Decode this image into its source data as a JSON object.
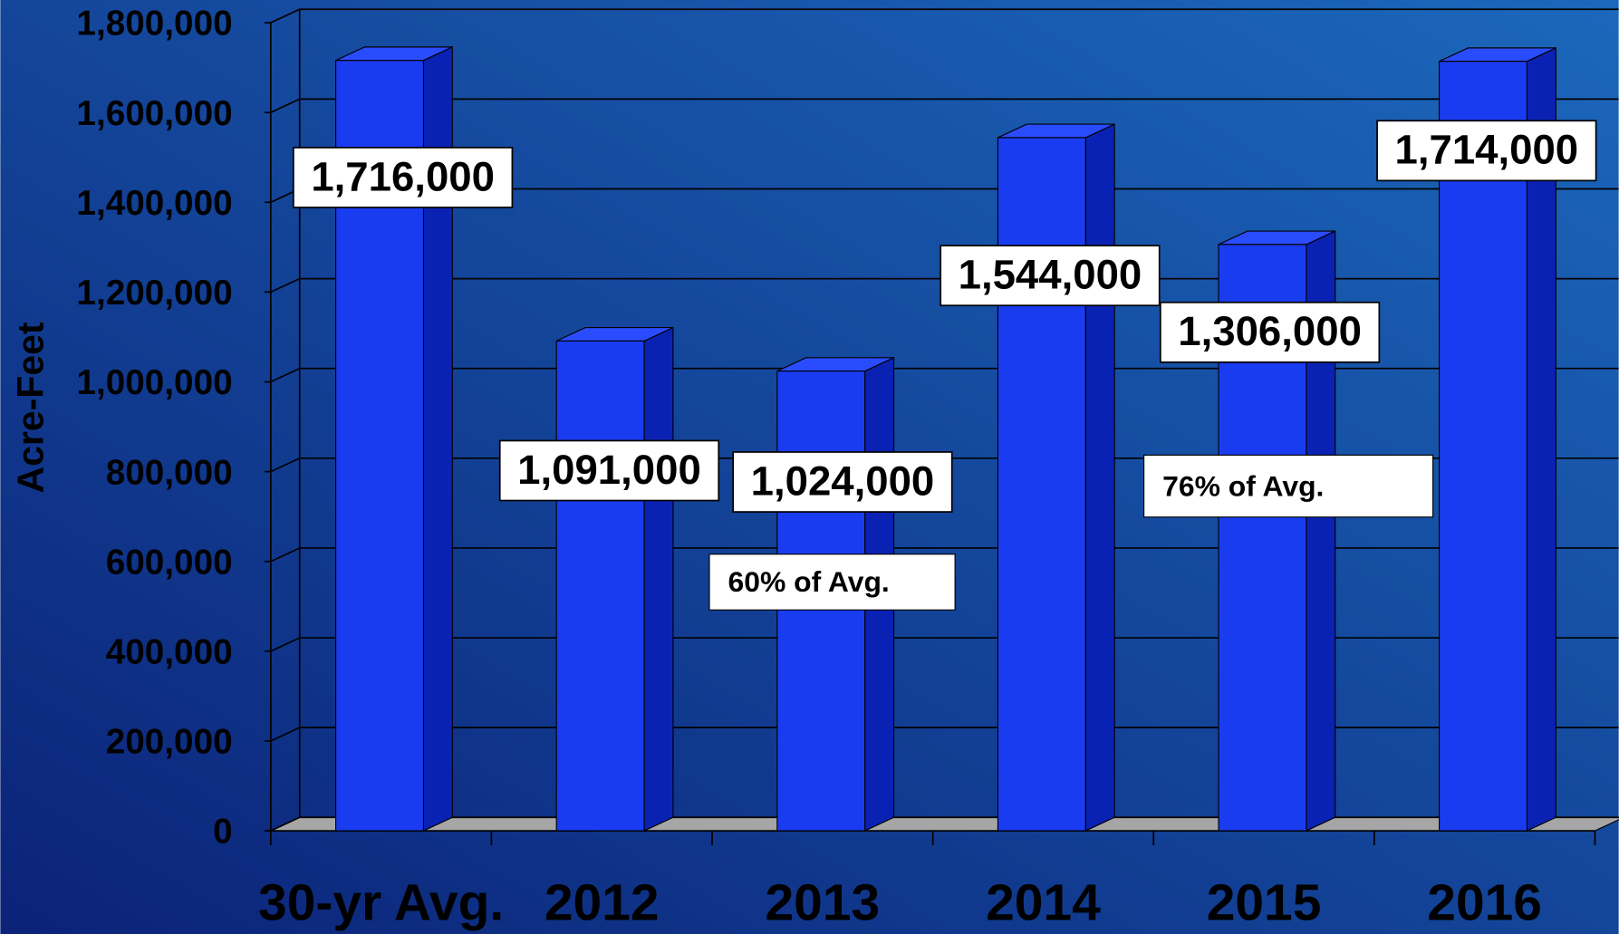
{
  "chart_data": {
    "type": "bar",
    "y_label": "Acre-Feet",
    "categories": [
      "30-yr Avg.",
      "2012",
      "2013",
      "2014",
      "2015",
      "2016"
    ],
    "values": [
      1716000,
      1091000,
      1024000,
      1544000,
      1306000,
      1714000
    ],
    "value_labels": [
      "1,716,000",
      "1,091,000",
      "1,024,000",
      "1,544,000",
      "1,306,000",
      "1,714,000"
    ],
    "color": "#1a3cf0",
    "ylim": [
      0,
      1800000
    ],
    "yticks": [
      0,
      {
        "value": 200000,
        "label": "200,000"
      },
      {
        "value": 400000,
        "label": "400,000"
      },
      {
        "value": 600000,
        "label": "600,000"
      },
      {
        "value": 800000,
        "label": "800,000"
      },
      {
        "value": 1000000,
        "label": "1,000,000"
      },
      {
        "value": 1200000,
        "label": "1,200,000"
      },
      {
        "value": 1400000,
        "label": "1,400,000"
      },
      {
        "value": 1600000,
        "label": "1,600,000"
      },
      {
        "value": 1800000,
        "label": "1,800,000"
      }
    ],
    "grid": true,
    "annotations": [
      "60% of Avg.",
      "76% of Avg."
    ]
  }
}
